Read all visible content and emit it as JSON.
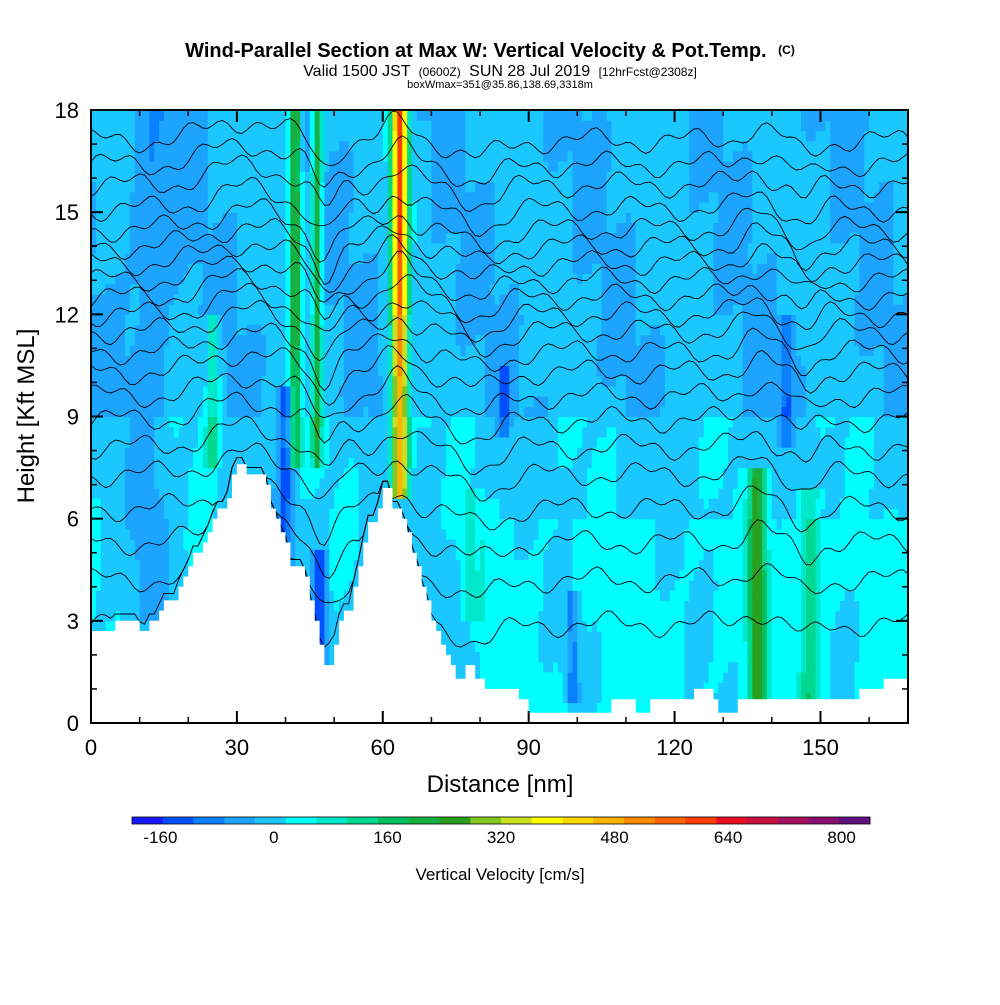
{
  "header": {
    "title_main": "Wind-Parallel Section at Max W: Vertical Velocity & Pot.Temp.",
    "title_mark": "(C)",
    "valid_a": "Valid 1500 JST",
    "valid_b": "(0600Z)",
    "valid_c": "SUN 28 Jul 2019",
    "valid_d": "[12hrFcst@2308z]",
    "box_line": "boxWmax=351@35.86,138.69,3318m"
  },
  "chart_data": {
    "type": "heatmap",
    "title": "Wind-Parallel Section at Max W: Vertical Velocity & Pot.Temp.",
    "xlabel": "Distance [nm]",
    "ylabel": "Height [Kft MSL]",
    "xlim": [
      0,
      168
    ],
    "ylim": [
      0,
      18
    ],
    "x_ticks": [
      "0",
      "30",
      "60",
      "90",
      "120",
      "150"
    ],
    "x_tick_values": [
      0,
      30,
      60,
      90,
      120,
      150
    ],
    "y_ticks": [
      "0",
      "3",
      "6",
      "9",
      "12",
      "15",
      "18"
    ],
    "y_tick_values": [
      0,
      3,
      6,
      9,
      12,
      15,
      18
    ],
    "colorbar": {
      "label": "Vertical Velocity [cm/s]",
      "tick_labels": [
        "-160",
        "0",
        "160",
        "320",
        "480",
        "640",
        "800"
      ],
      "tick_values": [
        -160,
        0,
        160,
        320,
        480,
        640,
        800
      ],
      "range": [
        -200,
        840
      ],
      "colors": [
        "#1a1aff",
        "#0050ff",
        "#0a80ff",
        "#1ca4ff",
        "#1ac8ff",
        "#00ffff",
        "#00e8cc",
        "#00d890",
        "#00c060",
        "#18b040",
        "#2aa020",
        "#80c820",
        "#c8e020",
        "#ffff00",
        "#ffd800",
        "#ffb400",
        "#ff8c00",
        "#ff6400",
        "#ff3c00",
        "#e81020",
        "#c81040",
        "#a81060",
        "#881070",
        "#601080"
      ]
    },
    "terrain_kft": [
      [
        0,
        2.7
      ],
      [
        5,
        2.7
      ],
      [
        5,
        3.0
      ],
      [
        8,
        3.0
      ],
      [
        10,
        3.0
      ],
      [
        10,
        2.7
      ],
      [
        12,
        2.7
      ],
      [
        12,
        3.0
      ],
      [
        14,
        3.0
      ],
      [
        14,
        3.3
      ],
      [
        15,
        3.3
      ],
      [
        15,
        3.6
      ],
      [
        18,
        3.6
      ],
      [
        18,
        4.0
      ],
      [
        19,
        4.0
      ],
      [
        19,
        4.3
      ],
      [
        20,
        4.3
      ],
      [
        20,
        4.6
      ],
      [
        21,
        4.6
      ],
      [
        21,
        5.0
      ],
      [
        23,
        5.0
      ],
      [
        23,
        5.3
      ],
      [
        24,
        5.3
      ],
      [
        24,
        5.6
      ],
      [
        25,
        5.6
      ],
      [
        25,
        6.0
      ],
      [
        26,
        6.0
      ],
      [
        26,
        6.3
      ],
      [
        28,
        6.3
      ],
      [
        28,
        6.6
      ],
      [
        29,
        6.6
      ],
      [
        29,
        7.3
      ],
      [
        30,
        7.3
      ],
      [
        30,
        7.6
      ],
      [
        32,
        7.6
      ],
      [
        32,
        7.3
      ],
      [
        36,
        7.3
      ],
      [
        36,
        7.0
      ],
      [
        37,
        7.0
      ],
      [
        37,
        6.3
      ],
      [
        38,
        6.3
      ],
      [
        38,
        6.0
      ],
      [
        39,
        6.0
      ],
      [
        39,
        5.6
      ],
      [
        40,
        5.6
      ],
      [
        40,
        5.3
      ],
      [
        41,
        5.3
      ],
      [
        41,
        4.6
      ],
      [
        44,
        4.6
      ],
      [
        44,
        4.3
      ],
      [
        45,
        4.3
      ],
      [
        45,
        3.6
      ],
      [
        46,
        3.6
      ],
      [
        46,
        3.0
      ],
      [
        47,
        3.0
      ],
      [
        47,
        2.3
      ],
      [
        48,
        2.3
      ],
      [
        48,
        1.7
      ],
      [
        50,
        1.7
      ],
      [
        50,
        2.3
      ],
      [
        51,
        2.3
      ],
      [
        51,
        3.0
      ],
      [
        52,
        3.0
      ],
      [
        52,
        3.3
      ],
      [
        54,
        3.3
      ],
      [
        54,
        4.0
      ],
      [
        55,
        4.0
      ],
      [
        55,
        4.6
      ],
      [
        56,
        4.6
      ],
      [
        56,
        5.3
      ],
      [
        57,
        5.3
      ],
      [
        57,
        5.9
      ],
      [
        59,
        5.9
      ],
      [
        59,
        6.3
      ],
      [
        60,
        6.3
      ],
      [
        60,
        6.9
      ],
      [
        62,
        6.9
      ],
      [
        62,
        6.3
      ],
      [
        64,
        6.3
      ],
      [
        64,
        6.0
      ],
      [
        65,
        6.0
      ],
      [
        65,
        5.6
      ],
      [
        66,
        5.6
      ],
      [
        66,
        5.0
      ],
      [
        67,
        5.0
      ],
      [
        67,
        4.6
      ],
      [
        68,
        4.6
      ],
      [
        68,
        4.0
      ],
      [
        69,
        4.0
      ],
      [
        69,
        3.6
      ],
      [
        70,
        3.6
      ],
      [
        70,
        3.0
      ],
      [
        71,
        3.0
      ],
      [
        71,
        2.7
      ],
      [
        72,
        2.7
      ],
      [
        72,
        2.3
      ],
      [
        73,
        2.3
      ],
      [
        73,
        2.0
      ],
      [
        74,
        2.0
      ],
      [
        74,
        1.7
      ],
      [
        75,
        1.7
      ],
      [
        75,
        1.3
      ],
      [
        77,
        1.3
      ],
      [
        77,
        1.7
      ],
      [
        79,
        1.7
      ],
      [
        79,
        1.3
      ],
      [
        81,
        1.3
      ],
      [
        81,
        1.0
      ],
      [
        88,
        1.0
      ],
      [
        88,
        0.7
      ],
      [
        90,
        0.7
      ],
      [
        90,
        0.3
      ],
      [
        107,
        0.3
      ],
      [
        107,
        0.7
      ],
      [
        112,
        0.7
      ],
      [
        112,
        0.3
      ],
      [
        115,
        0.3
      ],
      [
        115,
        0.7
      ],
      [
        120,
        0.7
      ],
      [
        120,
        0.7
      ],
      [
        124,
        0.7
      ],
      [
        124,
        1.0
      ],
      [
        128,
        1.0
      ],
      [
        128,
        0.7
      ],
      [
        129,
        0.7
      ],
      [
        129,
        0.3
      ],
      [
        133,
        0.3
      ],
      [
        133,
        0.7
      ],
      [
        158,
        0.7
      ],
      [
        158,
        1.0
      ],
      [
        163,
        1.0
      ],
      [
        163,
        1.3
      ],
      [
        168,
        1.3
      ]
    ],
    "theta_contours_kft_at_left": [
      2.9,
      4.2,
      5.3,
      6.3,
      7.3,
      8.1,
      8.9,
      9.6,
      10.3,
      10.9,
      11.5,
      12.0,
      12.5,
      13.0,
      13.5,
      14.0,
      14.5,
      15.1,
      15.8,
      16.4,
      17.1
    ],
    "grid": false,
    "legend": "bottom"
  }
}
